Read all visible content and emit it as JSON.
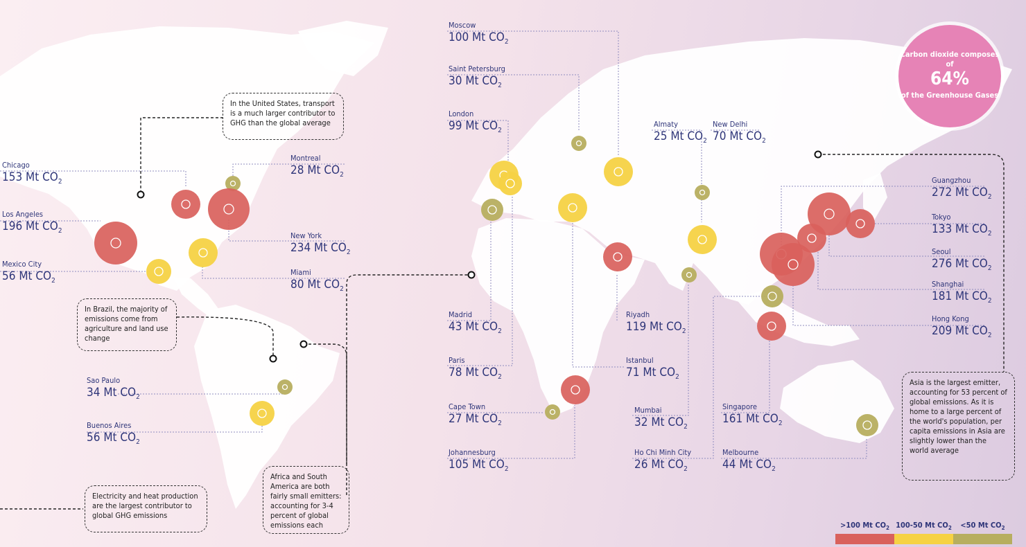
{
  "colors": {
    "high": "#d9615c",
    "mid": "#f6d244",
    "low": "#b7ae5f",
    "label": "#2e3579",
    "badge": "#e683b6"
  },
  "unit_main": "Mt CO",
  "unit_sub": "2",
  "cities": [
    {
      "name": "Chicago",
      "value": "153",
      "tier": "high"
    },
    {
      "name": "Los Angeles",
      "value": "196",
      "tier": "high"
    },
    {
      "name": "Mexico City",
      "value": "56",
      "tier": "mid"
    },
    {
      "name": "Montreal",
      "value": "28",
      "tier": "low"
    },
    {
      "name": "New York",
      "value": "234",
      "tier": "high"
    },
    {
      "name": "Miami",
      "value": "80",
      "tier": "mid"
    },
    {
      "name": "Sao Paulo",
      "value": "34",
      "tier": "low"
    },
    {
      "name": "Buenos Aires",
      "value": "56",
      "tier": "mid"
    },
    {
      "name": "Moscow",
      "value": "100",
      "tier": "mid"
    },
    {
      "name": "Saint Petersburg",
      "value": "30",
      "tier": "low"
    },
    {
      "name": "London",
      "value": "99",
      "tier": "mid"
    },
    {
      "name": "Madrid",
      "value": "43",
      "tier": "low"
    },
    {
      "name": "Paris",
      "value": "78",
      "tier": "mid"
    },
    {
      "name": "Cape Town",
      "value": "27",
      "tier": "low"
    },
    {
      "name": "Johannesburg",
      "value": "105",
      "tier": "high"
    },
    {
      "name": "Almaty",
      "value": "25",
      "tier": "low"
    },
    {
      "name": "New Delhi",
      "value": "70",
      "tier": "mid"
    },
    {
      "name": "Riyadh",
      "value": "119",
      "tier": "high"
    },
    {
      "name": "Istanbul",
      "value": "71",
      "tier": "mid"
    },
    {
      "name": "Mumbai",
      "value": "32",
      "tier": "low"
    },
    {
      "name": "Ho Chi Minh City",
      "value": "26",
      "tier": "low"
    },
    {
      "name": "Singapore",
      "value": "161",
      "tier": "high"
    },
    {
      "name": "Melbourne",
      "value": "44",
      "tier": "low"
    },
    {
      "name": "Guangzhou",
      "value": "272",
      "tier": "high"
    },
    {
      "name": "Tokyo",
      "value": "133",
      "tier": "high"
    },
    {
      "name": "Seoul",
      "value": "276",
      "tier": "high"
    },
    {
      "name": "Shanghai",
      "value": "181",
      "tier": "high"
    },
    {
      "name": "Hong Kong",
      "value": "209",
      "tier": "high"
    }
  ],
  "notes": {
    "us_transport": "In the United States, transport is a much larger contributor to GHG than the global average",
    "brazil": "In Brazil, the majority of emissions come from agriculture and land use change",
    "electricity": "Electricity and heat production are the largest contributor to global GHG emissions",
    "africa_sa": "Africa and South America are both fairly small emitters: accounting for 3-4 percent of global emissions each",
    "asia": "Asia is the largest emitter, accounting for 53 percent of global emissions. As it is home to a large percent of the world's population, per capita emissions in Asia are slightly lower than the world average"
  },
  "badge": {
    "line1": "Carbon dioxide composes of",
    "percent": "64%",
    "line2": "of the Greenhouse Gases"
  },
  "legend": [
    {
      "label": ">100 Mt CO",
      "sub": "2",
      "color": "#d9615c"
    },
    {
      "label": "100-50  Mt CO",
      "sub": "2",
      "color": "#f6d244"
    },
    {
      "label": "<50 Mt CO",
      "sub": "2",
      "color": "#b7ae5f"
    }
  ]
}
